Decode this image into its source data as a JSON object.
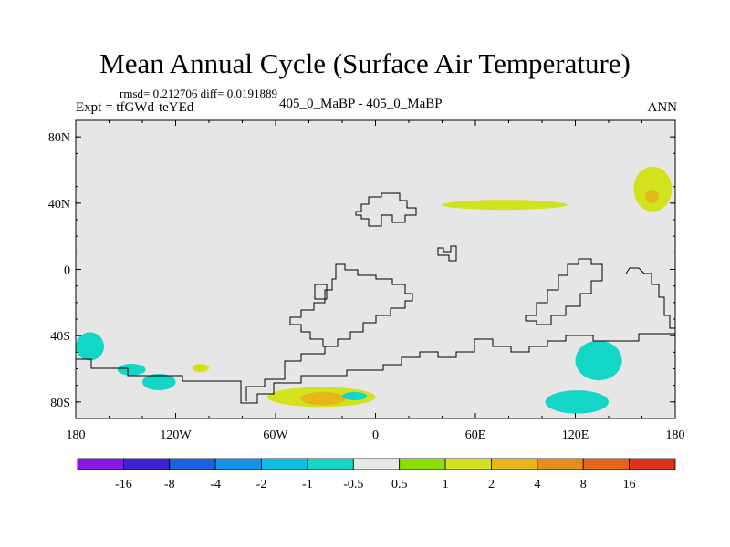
{
  "header": {
    "title": "Mean Annual Cycle (Surface Air Temperature)",
    "stats": "rmsd= 0.212706 diff= 0.0191889",
    "expt_label": "Expt = tfGWd-teYEd",
    "experiment": "405_0_MaBP - 405_0_MaBP",
    "season": "ANN"
  },
  "chart_data": {
    "type": "heatmap",
    "title": "Mean Annual Cycle (Surface Air Temperature)",
    "subtitle": "405_0_MaBP - 405_0_MaBP",
    "xlabel": "",
    "ylabel": "",
    "xlim": [
      -180,
      180
    ],
    "ylim": [
      -90,
      90
    ],
    "x_ticks": [
      {
        "value": -180,
        "label": "180"
      },
      {
        "value": -120,
        "label": "120W"
      },
      {
        "value": -60,
        "label": "60W"
      },
      {
        "value": 0,
        "label": "0"
      },
      {
        "value": 60,
        "label": "60E"
      },
      {
        "value": 120,
        "label": "120E"
      },
      {
        "value": 180,
        "label": "180"
      }
    ],
    "y_ticks": [
      {
        "value": 80,
        "label": "80N"
      },
      {
        "value": 40,
        "label": "40N"
      },
      {
        "value": 0,
        "label": "0"
      },
      {
        "value": -40,
        "label": "40S"
      },
      {
        "value": -80,
        "label": "80S"
      }
    ],
    "background_color": "#e6e6e6",
    "colorbar": {
      "labels": [
        "-16",
        "-8",
        "-4",
        "-2",
        "-1",
        "-0.5",
        "0.5",
        "1",
        "2",
        "4",
        "8",
        "16"
      ],
      "colors": [
        "#8a16e8",
        "#3c22d2",
        "#1e60e0",
        "#1592e8",
        "#0dbfe6",
        "#14d6c6",
        "#e6e6e6",
        "#8ce000",
        "#d2e21c",
        "#e6b61a",
        "#e48e18",
        "#e26414",
        "#e0321a"
      ]
    },
    "anomaly_regions": [
      {
        "name": "asia-warm-band",
        "lon": [
          40,
          115
        ],
        "lat": [
          36,
          42
        ],
        "class": "1"
      },
      {
        "name": "kamchatka-warm",
        "lon": [
          155,
          178
        ],
        "lat": [
          35,
          62
        ],
        "class": "1"
      },
      {
        "name": "kamchatka-core",
        "lon": [
          162,
          170
        ],
        "lat": [
          40,
          48
        ],
        "class": "2"
      },
      {
        "name": "ross-sea-cold",
        "lon": [
          -180,
          -163
        ],
        "lat": [
          -55,
          -38
        ],
        "class": "-0.5"
      },
      {
        "name": "south-pacific-cold",
        "lon": [
          -155,
          -138
        ],
        "lat": [
          -64,
          -57
        ],
        "class": "-0.5"
      },
      {
        "name": "amundsen-cold",
        "lon": [
          -140,
          -120
        ],
        "lat": [
          -73,
          -63
        ],
        "class": "-0.5"
      },
      {
        "name": "bellingshausen-warm",
        "lon": [
          -110,
          -100
        ],
        "lat": [
          -62,
          -57
        ],
        "class": "1"
      },
      {
        "name": "antarctic-warm",
        "lon": [
          -65,
          0
        ],
        "lat": [
          -83,
          -71
        ],
        "class": "1"
      },
      {
        "name": "antarctic-core",
        "lon": [
          -45,
          -18
        ],
        "lat": [
          -82,
          -74
        ],
        "class": "2"
      },
      {
        "name": "weddell-cold",
        "lon": [
          -20,
          -5
        ],
        "lat": [
          -79,
          -74
        ],
        "class": "-0.5"
      },
      {
        "name": "indian-ocean-cold",
        "lon": [
          120,
          148
        ],
        "lat": [
          -67,
          -43
        ],
        "class": "-0.5"
      },
      {
        "name": "australia-south-cold",
        "lon": [
          102,
          140
        ],
        "lat": [
          -87,
          -73
        ],
        "class": "-0.5"
      }
    ]
  }
}
